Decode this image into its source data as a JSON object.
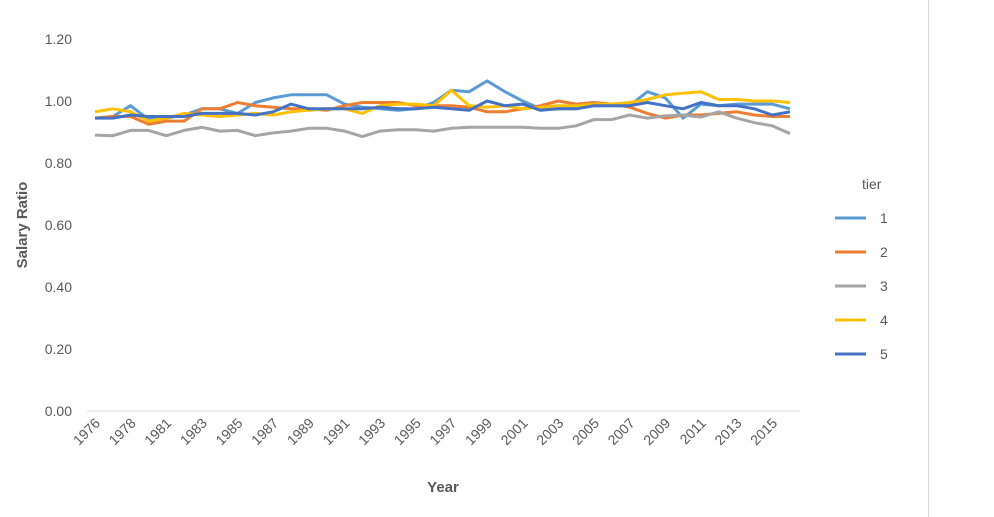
{
  "chart_data": {
    "type": "line",
    "title": "",
    "xlabel": "Year",
    "ylabel": "Salary Ratio",
    "ylim": [
      0,
      1.2
    ],
    "yticks": [
      "0.00",
      "0.20",
      "0.40",
      "0.60",
      "0.80",
      "1.00",
      "1.20"
    ],
    "grid": false,
    "legend_title": "tier",
    "legend_position": "right",
    "x": [
      "1976",
      "1977",
      "1978",
      "1980",
      "1981",
      "1982",
      "1983",
      "1984",
      "1985",
      "1986",
      "1987",
      "1988",
      "1989",
      "1990",
      "1991",
      "1992",
      "1993",
      "1994",
      "1995",
      "1996",
      "1997",
      "1998",
      "1999",
      "2000",
      "2001",
      "2002",
      "2003",
      "2004",
      "2005",
      "2006",
      "2007",
      "2008",
      "2009",
      "2010",
      "2011",
      "2012",
      "2013",
      "2014",
      "2015",
      "2016"
    ],
    "xtick_labels": [
      "1976",
      "1978",
      "1981",
      "1983",
      "1985",
      "1987",
      "1989",
      "1991",
      "1993",
      "1995",
      "1997",
      "1999",
      "2001",
      "2003",
      "2005",
      "2007",
      "2009",
      "2011",
      "2013",
      "2015"
    ],
    "series": [
      {
        "name": "1",
        "color": "#5B9BD5",
        "values": [
          0.945,
          0.95,
          0.985,
          0.94,
          0.945,
          0.955,
          0.975,
          0.975,
          0.96,
          0.995,
          1.01,
          1.02,
          1.02,
          1.02,
          0.99,
          0.98,
          0.975,
          0.97,
          0.975,
          0.995,
          1.035,
          1.03,
          1.065,
          1.03,
          1.0,
          0.975,
          0.975,
          0.975,
          0.985,
          0.985,
          0.985,
          1.03,
          1.01,
          0.945,
          0.99,
          0.985,
          0.99,
          0.99,
          0.99,
          0.975
        ]
      },
      {
        "name": "2",
        "color": "#ED7D31",
        "values": [
          0.945,
          0.95,
          0.95,
          0.925,
          0.935,
          0.935,
          0.975,
          0.975,
          0.995,
          0.985,
          0.98,
          0.975,
          0.975,
          0.97,
          0.985,
          0.995,
          0.995,
          0.995,
          0.985,
          0.985,
          0.985,
          0.98,
          0.965,
          0.965,
          0.975,
          0.985,
          1.0,
          0.99,
          0.995,
          0.99,
          0.98,
          0.96,
          0.945,
          0.955,
          0.955,
          0.96,
          0.965,
          0.955,
          0.95,
          0.95
        ]
      },
      {
        "name": "3",
        "color": "#A5A5A5",
        "values": [
          0.89,
          0.888,
          0.905,
          0.905,
          0.888,
          0.905,
          0.915,
          0.903,
          0.905,
          0.888,
          0.897,
          0.903,
          0.912,
          0.912,
          0.903,
          0.885,
          0.903,
          0.907,
          0.907,
          0.903,
          0.912,
          0.915,
          0.915,
          0.915,
          0.915,
          0.912,
          0.912,
          0.92,
          0.94,
          0.94,
          0.955,
          0.945,
          0.952,
          0.955,
          0.948,
          0.965,
          0.945,
          0.93,
          0.92,
          0.895
        ]
      },
      {
        "name": "4",
        "color": "#FFC000",
        "values": [
          0.965,
          0.975,
          0.965,
          0.935,
          0.945,
          0.96,
          0.955,
          0.95,
          0.955,
          0.96,
          0.955,
          0.965,
          0.97,
          0.975,
          0.975,
          0.96,
          0.985,
          0.99,
          0.99,
          0.985,
          1.035,
          0.985,
          0.98,
          0.985,
          0.975,
          0.98,
          0.985,
          0.985,
          0.99,
          0.99,
          0.995,
          1.005,
          1.02,
          1.025,
          1.03,
          1.005,
          1.005,
          1.0,
          1.0,
          0.995
        ]
      },
      {
        "name": "5",
        "color": "#4472C4",
        "values": [
          0.945,
          0.945,
          0.955,
          0.95,
          0.95,
          0.95,
          0.96,
          0.96,
          0.96,
          0.955,
          0.965,
          0.99,
          0.975,
          0.975,
          0.975,
          0.975,
          0.98,
          0.975,
          0.975,
          0.98,
          0.975,
          0.97,
          1.0,
          0.985,
          0.99,
          0.97,
          0.975,
          0.975,
          0.985,
          0.985,
          0.985,
          0.995,
          0.985,
          0.975,
          0.995,
          0.985,
          0.985,
          0.975,
          0.955,
          0.965
        ]
      }
    ]
  }
}
